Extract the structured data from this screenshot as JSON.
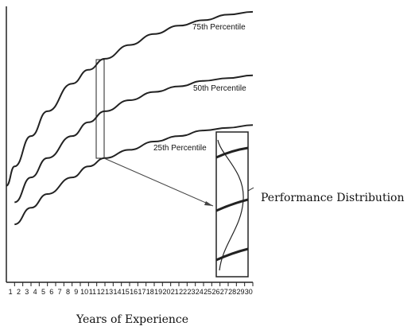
{
  "chart_data": {
    "type": "line",
    "title": "",
    "xlabel": "Years of Experience",
    "ylabel": "",
    "x": [
      1,
      2,
      3,
      4,
      5,
      6,
      7,
      8,
      9,
      10,
      11,
      12,
      13,
      14,
      15,
      16,
      17,
      18,
      19,
      20,
      21,
      22,
      23,
      24,
      25,
      26,
      27,
      28,
      29,
      30
    ],
    "xlim": [
      0,
      30
    ],
    "ylim": [
      0,
      100
    ],
    "grid": false,
    "series": [
      {
        "name": "75th Percentile",
        "points": [
          [
            0,
            35
          ],
          [
            1,
            42
          ],
          [
            3,
            53
          ],
          [
            5,
            62
          ],
          [
            8,
            72
          ],
          [
            10,
            77
          ],
          [
            12,
            81
          ],
          [
            15,
            86
          ],
          [
            18,
            90
          ],
          [
            21,
            93
          ],
          [
            24,
            95
          ],
          [
            27,
            97
          ],
          [
            30,
            98
          ]
        ]
      },
      {
        "name": "50th Percentile",
        "points": [
          [
            1,
            29
          ],
          [
            3,
            38
          ],
          [
            5,
            45
          ],
          [
            8,
            53
          ],
          [
            10,
            58
          ],
          [
            12,
            62
          ],
          [
            15,
            66
          ],
          [
            18,
            69
          ],
          [
            21,
            71
          ],
          [
            24,
            73
          ],
          [
            27,
            74
          ],
          [
            30,
            75
          ]
        ]
      },
      {
        "name": "25th Percentile",
        "points": [
          [
            1,
            21
          ],
          [
            3,
            27
          ],
          [
            5,
            32
          ],
          [
            8,
            38
          ],
          [
            10,
            42
          ],
          [
            12,
            45
          ],
          [
            15,
            48
          ],
          [
            18,
            51
          ],
          [
            21,
            53
          ],
          [
            24,
            55
          ],
          [
            27,
            56
          ],
          [
            30,
            57
          ]
        ]
      }
    ],
    "annotations": {
      "inset_label": "Performance Distribution"
    }
  }
}
